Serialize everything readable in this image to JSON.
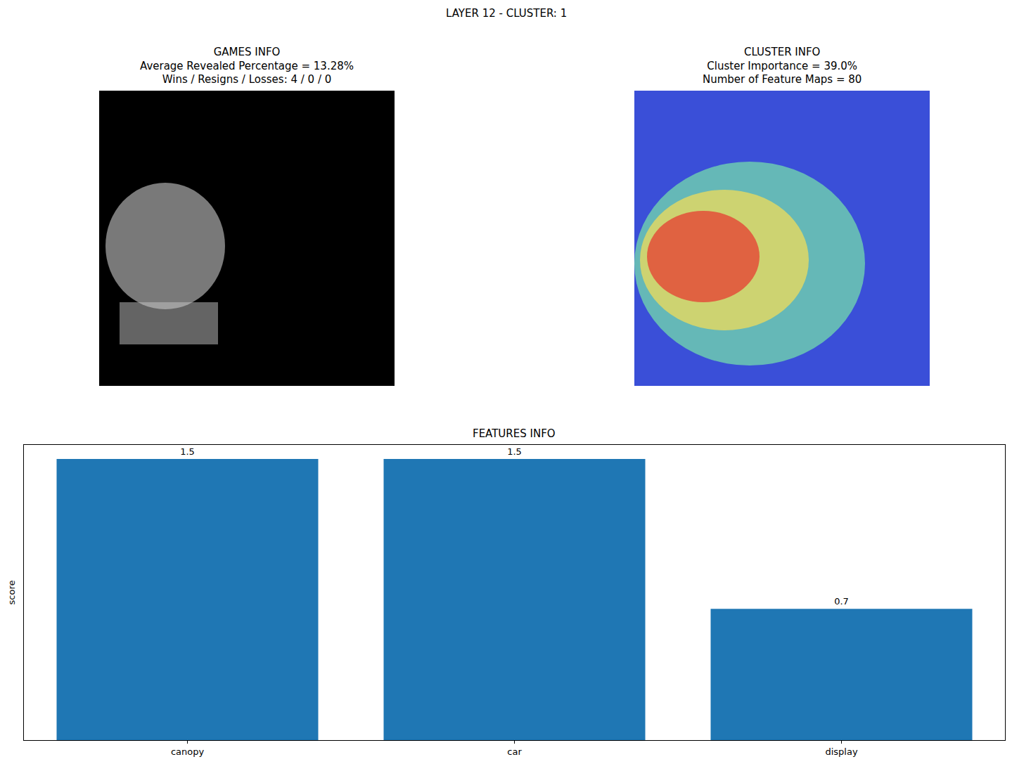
{
  "suptitle": "LAYER 12 - CLUSTER: 1",
  "panels": [
    {
      "title": [
        "GAMES INFO",
        "Average Revealed Percentage = 13.28%",
        "Wins / Resigns / Losses: 4 / 0 / 0"
      ]
    },
    {
      "title": [
        "CLUSTER INFO",
        "Cluster Importance = 39.0%",
        "Number of Feature Maps = 80"
      ]
    }
  ],
  "chart_data": {
    "type": "bar",
    "title": "FEATURES INFO",
    "categories": [
      "canopy",
      "car",
      "display"
    ],
    "values": [
      1.5,
      1.5,
      0.7
    ],
    "color": "#1f77b4",
    "y_label": "score",
    "ylim": [
      0,
      1.575
    ],
    "data_labels": true,
    "tick_labels": "x"
  }
}
